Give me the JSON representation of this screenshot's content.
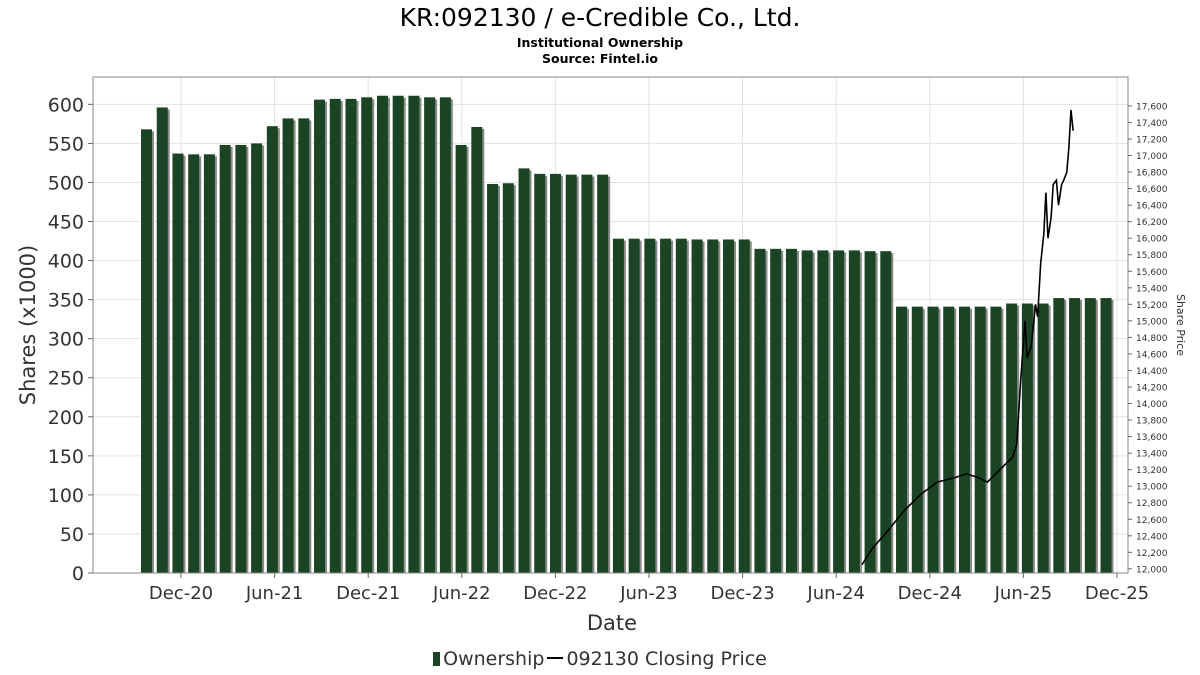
{
  "title": "KR:092130 / e-Credible Co., Ltd.",
  "subtitle": "Institutional Ownership",
  "source": "Source: Fintel.io",
  "legend": {
    "ownership": "Ownership",
    "price": "092130 Closing Price"
  },
  "colors": {
    "bar": "#1b4424",
    "bar_shadow": "#8a8a8a",
    "price_line": "#000000",
    "grid": "#e2e2e2"
  },
  "chart_data": {
    "type": "bar",
    "xlabel": "Date",
    "ylabel": "Shares (x1000)",
    "y2label": "Share Price",
    "ylim": [
      0,
      635
    ],
    "y2lim": [
      11950,
      17950
    ],
    "yticks": [
      "0",
      "50",
      "100",
      "150",
      "200",
      "250",
      "300",
      "350",
      "400",
      "450",
      "500",
      "550",
      "600"
    ],
    "y2ticks": [
      "12,000",
      "12,200",
      "12,400",
      "12,600",
      "12,800",
      "13,000",
      "13,200",
      "13,400",
      "13,600",
      "13,800",
      "14,000",
      "14,200",
      "14,400",
      "14,600",
      "14,800",
      "15,000",
      "15,200",
      "15,400",
      "15,600",
      "15,800",
      "16,000",
      "16,200",
      "16,400",
      "16,600",
      "16,800",
      "17,000",
      "17,200",
      "17,400",
      "17,600"
    ],
    "xticks": [
      "Dec-20",
      "Jun-21",
      "Dec-21",
      "Jun-22",
      "Dec-22",
      "Jun-23",
      "Dec-23",
      "Jun-24",
      "Dec-24",
      "Jun-25",
      "Dec-25"
    ],
    "grid": true,
    "legend_position": "bottom",
    "series": [
      {
        "name": "Ownership",
        "values": [
          568,
          596,
          537,
          536,
          536,
          548,
          548,
          550,
          572,
          582,
          582,
          606,
          607,
          607,
          609,
          611,
          611,
          611,
          609,
          609,
          548,
          571,
          498,
          499,
          518,
          511,
          511,
          510,
          510,
          510,
          428,
          428,
          428,
          428,
          428,
          427,
          427,
          427,
          427,
          415,
          415,
          415,
          413,
          413,
          413,
          413,
          412,
          412,
          341,
          341,
          341,
          341,
          341,
          341,
          341,
          345,
          345,
          345,
          352,
          352,
          352,
          352
        ]
      },
      {
        "name": "092130 Closing Price",
        "points": [
          [
            0,
            12050
          ],
          [
            0.05,
            12250
          ],
          [
            0.12,
            12450
          ],
          [
            0.2,
            12700
          ],
          [
            0.28,
            12900
          ],
          [
            0.36,
            13050
          ],
          [
            0.44,
            13100
          ],
          [
            0.5,
            13150
          ],
          [
            0.56,
            13100
          ],
          [
            0.6,
            13050
          ],
          [
            0.64,
            13150
          ],
          [
            0.68,
            13250
          ],
          [
            0.72,
            13350
          ],
          [
            0.74,
            13500
          ],
          [
            0.76,
            14300
          ],
          [
            0.78,
            15000
          ],
          [
            0.79,
            14550
          ],
          [
            0.81,
            14700
          ],
          [
            0.83,
            15200
          ],
          [
            0.84,
            15050
          ],
          [
            0.855,
            15700
          ],
          [
            0.87,
            16050
          ],
          [
            0.88,
            16550
          ],
          [
            0.89,
            16000
          ],
          [
            0.905,
            16250
          ],
          [
            0.915,
            16650
          ],
          [
            0.93,
            16700
          ],
          [
            0.94,
            16400
          ],
          [
            0.955,
            16650
          ],
          [
            0.965,
            16700
          ],
          [
            0.98,
            16800
          ],
          [
            0.99,
            17100
          ],
          [
            1.0,
            17550
          ],
          [
            1.01,
            17300
          ]
        ]
      }
    ]
  }
}
